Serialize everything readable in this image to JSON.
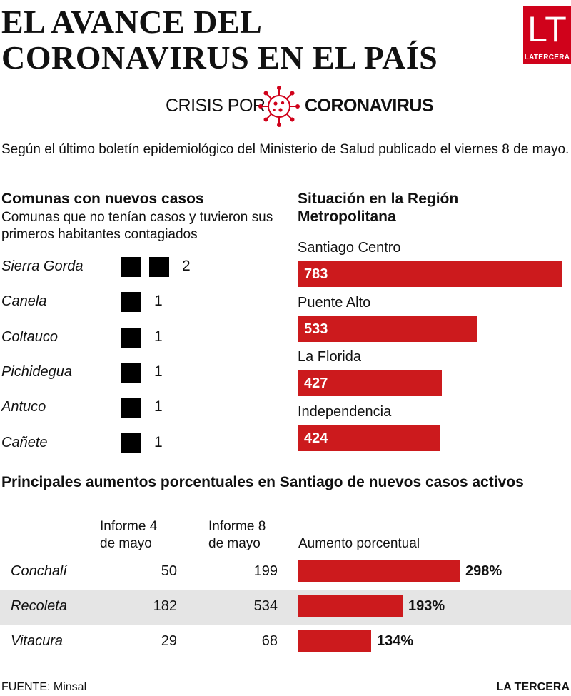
{
  "title": "EL AVANCE DEL\nCORONAVIRUS EN EL PAÍS",
  "logo": {
    "monogram": "LT",
    "label": "LATERCERA"
  },
  "crisis": {
    "prefix": "CRISIS POR",
    "brand": "CORONAVIRUS"
  },
  "intro": "Según el último boletín epidemiológico del Ministerio de Salud publicado el viernes 8 de mayo.",
  "colors": {
    "accent": "#cc1a1d",
    "brand": "#d0021b",
    "row_shade": "#e5e5e5"
  },
  "icons": {
    "virus": "coronavirus-icon"
  },
  "chart_data": [
    {
      "type": "bar",
      "title": "Comunas con nuevos casos",
      "subtitle": "Comunas que no tenían casos y tuvieron sus primeros habitantes contagiados",
      "categories": [
        "Sierra Gorda",
        "Canela",
        "Coltauco",
        "Pichidegua",
        "Antuco",
        "Cañete"
      ],
      "values": [
        2,
        1,
        1,
        1,
        1,
        1
      ]
    },
    {
      "type": "bar",
      "title": "Situación en la Región\nMetropolitana",
      "categories": [
        "Santiago Centro",
        "Puente Alto",
        "La Florida",
        "Independencia"
      ],
      "values": [
        783,
        533,
        427,
        424
      ],
      "xlim": [
        0,
        783
      ]
    },
    {
      "type": "table",
      "title": "Principales aumentos porcentuales en Santiago de nuevos casos activos",
      "columns": [
        "Informe 4\nde mayo",
        "Informe 8\nde mayo",
        "Aumento porcentual"
      ],
      "rows": [
        {
          "comuna": "Conchalí",
          "informe_4": "50",
          "informe_8": "199",
          "aumento": 298,
          "aumento_label": "298%"
        },
        {
          "comuna": "Recoleta",
          "informe_4": "182",
          "informe_8": "534",
          "aumento": 193,
          "aumento_label": "193%"
        },
        {
          "comuna": "Vitacura",
          "informe_4": "29",
          "informe_8": "68",
          "aumento": 134,
          "aumento_label": "134%"
        }
      ]
    }
  ],
  "footer": {
    "source": "FUENTE: Minsal",
    "brand": "LA TERCERA"
  }
}
